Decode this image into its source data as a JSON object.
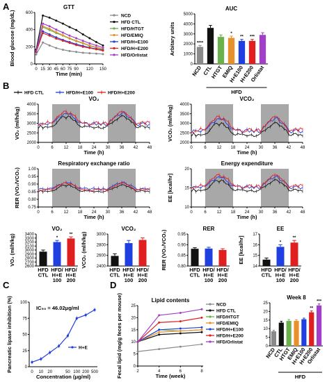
{
  "panels": {
    "A": "A",
    "B": "B",
    "C": "C",
    "D": "D"
  },
  "colors": {
    "NCD": "#8a8a8a",
    "HFD CTL": "#111111",
    "HFD/HTGT": "#6ab04c",
    "HFD/EMIQ": "#e8902c",
    "HFD/H+E100": "#1f3fe0",
    "HFD/H+E200": "#e02020",
    "HFD/Orlistat": "#a23fc8",
    "shade": "#a8a8a8"
  },
  "chart_data": [
    {
      "id": "gtt",
      "type": "line",
      "title": "GTT",
      "xlabel": "Time (min)",
      "ylabel": "Blood glucose (mg/dL)",
      "x": [
        0,
        15,
        30,
        45,
        60,
        75,
        90,
        105,
        120,
        135,
        150
      ],
      "xticks": [
        "0",
        "15",
        "30",
        "45",
        "60",
        "75",
        "90",
        "120",
        "150"
      ],
      "xtick_vals": [
        0,
        15,
        30,
        45,
        60,
        75,
        90,
        120,
        150
      ],
      "ylim": [
        0,
        600
      ],
      "yticks": [
        0,
        200,
        400,
        600
      ],
      "series": [
        {
          "name": "NCD",
          "values": [
            110,
            250,
            215,
            185,
            165,
            150,
            140,
            130,
            125,
            120,
            115
          ]
        },
        {
          "name": "HFD CTL",
          "values": [
            165,
            565,
            540,
            505,
            470,
            430,
            395,
            345,
            300,
            255,
            215
          ]
        },
        {
          "name": "HFD/HTGT",
          "values": [
            150,
            430,
            395,
            360,
            330,
            295,
            265,
            240,
            210,
            190,
            170
          ]
        },
        {
          "name": "HFD/EMIQ",
          "values": [
            150,
            440,
            410,
            370,
            335,
            300,
            270,
            245,
            215,
            195,
            175
          ]
        },
        {
          "name": "HFD/H+E100",
          "values": [
            140,
            380,
            345,
            310,
            280,
            255,
            230,
            210,
            190,
            175,
            160
          ]
        },
        {
          "name": "HFD/H+E200",
          "values": [
            140,
            360,
            330,
            295,
            270,
            245,
            220,
            200,
            185,
            170,
            155
          ]
        },
        {
          "name": "HFD/Orlistat",
          "values": [
            150,
            470,
            440,
            400,
            365,
            330,
            300,
            270,
            240,
            215,
            190
          ]
        }
      ]
    },
    {
      "id": "auc",
      "type": "bar",
      "title": "AUC",
      "ylabel": "Arbitary units",
      "ylim": [
        0,
        5000
      ],
      "yticks": [
        0,
        1000,
        2000,
        3000,
        4000,
        5000
      ],
      "categories": [
        "NCD",
        "CTL",
        "HTGT",
        "EMIQ",
        "H+E100",
        "H+E200",
        "Orlistat"
      ],
      "values": [
        1700,
        3600,
        2700,
        2600,
        2300,
        2300,
        2900
      ],
      "errors": [
        150,
        250,
        200,
        180,
        150,
        150,
        220
      ],
      "stars": [
        "****",
        "",
        "",
        "*",
        "**",
        "***",
        ""
      ],
      "group_label": "HFD",
      "series_colors": [
        "NCD",
        "HFD CTL",
        "HFD/HTGT",
        "HFD/EMIQ",
        "HFD/H+E100",
        "HFD/H+E200",
        "HFD/Orlistat"
      ]
    },
    {
      "id": "vo2",
      "type": "line",
      "title": "VO₂",
      "xlabel": "Time (h)",
      "ylabel": "VO₂ (ml/h/kg)",
      "ylim": [
        2000,
        4000
      ],
      "yticks": [
        2000,
        2500,
        3000,
        3500,
        4000
      ],
      "xlim": [
        0,
        48
      ],
      "xticks": [
        0,
        6,
        12,
        18,
        24,
        30,
        36,
        42,
        48
      ],
      "dark": [
        [
          6,
          18
        ],
        [
          30,
          42
        ]
      ],
      "series": [
        {
          "name": "HFD CTL",
          "base": 2900,
          "amp": 550
        },
        {
          "name": "HFD/H+E100",
          "base": 3050,
          "amp": 600
        },
        {
          "name": "HFD/H+E200",
          "base": 3100,
          "amp": 620
        }
      ]
    },
    {
      "id": "vco2",
      "type": "line",
      "title": "VCO₂",
      "xlabel": "Time (h)",
      "ylabel": "VCO₂ (ml/h/kg)",
      "ylim": [
        2000,
        4000
      ],
      "yticks": [
        2000,
        2500,
        3000,
        3500,
        4000
      ],
      "xlim": [
        0,
        48
      ],
      "xticks": [
        0,
        6,
        12,
        18,
        24,
        30,
        36,
        42,
        48
      ],
      "dark": [
        [
          6,
          18
        ],
        [
          30,
          42
        ]
      ],
      "series": [
        {
          "name": "HFD CTL",
          "base": 2500,
          "amp": 600
        },
        {
          "name": "HFD/H+E100",
          "base": 2700,
          "amp": 700
        },
        {
          "name": "HFD/H+E200",
          "base": 2750,
          "amp": 720
        }
      ]
    },
    {
      "id": "rer",
      "type": "line",
      "title": "Respiratory exchange ratio",
      "xlabel": "Time (h)",
      "ylabel": "RER (VO₂/VCO₂)",
      "ylim": [
        0.75,
        1.0
      ],
      "yticks": [
        0.75,
        0.8,
        0.85,
        0.9,
        0.95,
        1.0
      ],
      "xlim": [
        0,
        48
      ],
      "xticks": [
        0,
        6,
        12,
        18,
        24,
        30,
        36,
        42,
        48
      ],
      "dark": [
        [
          6,
          18
        ],
        [
          30,
          42
        ]
      ],
      "series": [
        {
          "name": "HFD CTL",
          "base": 0.86,
          "amp": 0.04
        },
        {
          "name": "HFD/H+E100",
          "base": 0.875,
          "amp": 0.045
        },
        {
          "name": "HFD/H+E200",
          "base": 0.87,
          "amp": 0.045
        }
      ]
    },
    {
      "id": "ee",
      "type": "line",
      "title": "Energy expenditure",
      "xlabel": "Time (h)",
      "ylabel": "EE [kcal/hr]",
      "ylim": [
        10,
        20
      ],
      "yticks": [
        10,
        15,
        20
      ],
      "xlim": [
        0,
        48
      ],
      "xticks": [
        0,
        6,
        12,
        18,
        24,
        30,
        36,
        42,
        48
      ],
      "dark": [
        [
          6,
          18
        ],
        [
          30,
          42
        ]
      ],
      "series": [
        {
          "name": "HFD CTL",
          "base": 14.8,
          "amp": 2.6
        },
        {
          "name": "HFD/H+E100",
          "base": 15.6,
          "amp": 2.9
        },
        {
          "name": "HFD/H+E200",
          "base": 15.9,
          "amp": 3.0
        }
      ]
    },
    {
      "id": "vo2bar",
      "type": "bar",
      "title": "VO₂",
      "ylabel": "VO₂ (ml/h/kg)",
      "ylim": [
        2600,
        3400
      ],
      "yticks": [
        2600,
        2700,
        2800,
        2900,
        3000,
        3100,
        3200,
        3300,
        3400
      ],
      "categories": [
        "HFD\nCTL",
        "HFD/\nH+E\n100",
        "HFD/\nH+E\n200"
      ],
      "values": [
        2960,
        3200,
        3290
      ],
      "errors": [
        40,
        40,
        40
      ],
      "stars": [
        "",
        "*",
        "**"
      ],
      "series_colors": [
        "HFD CTL",
        "HFD/H+E100",
        "HFD/H+E200"
      ]
    },
    {
      "id": "vco2bar",
      "type": "bar",
      "title": "VCO₂",
      "ylabel": "VCO₂ (ml/h/kg)",
      "ylim": [
        2400,
        3000
      ],
      "yticks": [
        2400,
        2600,
        2800,
        3000
      ],
      "categories": [
        "HFD\nCTL",
        "HFD/\nH+E\n100",
        "HFD/\nH+E\n200"
      ],
      "values": [
        2590,
        2830,
        2890
      ],
      "errors": [
        40,
        50,
        40
      ],
      "stars": [
        "",
        "",
        ""
      ],
      "series_colors": [
        "HFD CTL",
        "HFD/H+E100",
        "HFD/H+E200"
      ]
    },
    {
      "id": "rerbar",
      "type": "bar",
      "title": "RER",
      "ylabel": "RER (VO₂/VCO₂)",
      "ylim": [
        0.8,
        0.95
      ],
      "yticks": [
        0.8,
        0.85,
        0.9,
        0.95
      ],
      "categories": [
        "HFD\nCTL",
        "HFD/\nH+E\n100",
        "HFD/\nH+E\n200"
      ],
      "values": [
        0.881,
        0.882,
        0.875
      ],
      "errors": [
        0.005,
        0.006,
        0.006
      ],
      "stars": [
        "",
        "",
        ""
      ],
      "series_colors": [
        "HFD CTL",
        "HFD/H+E100",
        "HFD/H+E200"
      ]
    },
    {
      "id": "eebar",
      "type": "bar",
      "title": "EE",
      "ylabel": "EE [kcal/hr]",
      "ylim": [
        14,
        17
      ],
      "yticks": [
        14,
        15,
        16,
        17
      ],
      "categories": [
        "HFD\nCTL",
        "HFD/\nH+E\n100",
        "HFD/\nH+E\n200"
      ],
      "values": [
        14.6,
        15.8,
        16.2
      ],
      "errors": [
        0.15,
        0.2,
        0.2
      ],
      "stars": [
        "",
        "*",
        "**"
      ],
      "series_colors": [
        "HFD CTL",
        "HFD/H+E100",
        "HFD/H+E200"
      ]
    },
    {
      "id": "lipase",
      "type": "line",
      "xlabel": "Concentration (μg/ml)",
      "ylabel": "Pancreatic lipase inhibition (%)",
      "ylim": [
        0,
        100
      ],
      "yticks": [
        0,
        25,
        50,
        75,
        100
      ],
      "xticks": [
        "0",
        "10",
        "20",
        "50",
        "100",
        "200",
        "500"
      ],
      "values": [
        7,
        12,
        22,
        32,
        48,
        75,
        80,
        88
      ],
      "annotation": "IC₅₀ = 46.02μg/ml",
      "legend": "H+E"
    },
    {
      "id": "lipid",
      "type": "line",
      "title": "Lipid contents",
      "xlabel": "Time (week)",
      "ylabel": "Fecal lipid (mg/g feces per mouse)",
      "ylim": [
        0,
        25
      ],
      "yticks": [
        0,
        5,
        10,
        15,
        20,
        25
      ],
      "x": [
        2,
        4,
        6,
        8
      ],
      "xticks": [
        2,
        4,
        6,
        8
      ],
      "series": [
        {
          "name": "NCD",
          "values": [
            6,
            7,
            8,
            9
          ]
        },
        {
          "name": "HFD CTL",
          "values": [
            10,
            13,
            13.5,
            14
          ]
        },
        {
          "name": "HFD/HTGT",
          "values": [
            10,
            15,
            14.5,
            15
          ]
        },
        {
          "name": "HFD/EMIQ",
          "values": [
            10,
            14,
            14.5,
            15
          ]
        },
        {
          "name": "HFD/H+E100",
          "values": [
            10,
            15,
            15.5,
            16
          ]
        },
        {
          "name": "HFD/H+E200",
          "values": [
            10,
            18,
            18.5,
            20
          ]
        },
        {
          "name": "HFD/Orlistat",
          "values": [
            10,
            21,
            22,
            23.5
          ]
        }
      ]
    },
    {
      "id": "week8",
      "type": "bar",
      "title": "Week 8",
      "ylim": [
        0,
        25
      ],
      "yticks": [
        0,
        5,
        10,
        15,
        20,
        25
      ],
      "categories": [
        "NCD",
        "CTL",
        "HTGT",
        "EMIQ",
        "H+E100",
        "H+E200",
        "Orlistat"
      ],
      "values": [
        8.5,
        13.5,
        14.5,
        14.5,
        15.5,
        19.5,
        23.5
      ],
      "errors": [
        0.6,
        0.8,
        0.8,
        0.7,
        0.6,
        0.8,
        0.9
      ],
      "stars": [
        "",
        "",
        "",
        "",
        "",
        "**",
        "***"
      ],
      "group_label": "HFD",
      "series_colors": [
        "NCD",
        "HFD CTL",
        "HFD/HTGT",
        "HFD/EMIQ",
        "HFD/H+E100",
        "HFD/H+E200",
        "HFD/Orlistat"
      ]
    }
  ],
  "legends": {
    "A": [
      "NCD",
      "HFD CTL",
      "HFD/HTGT",
      "HFD/EMIQ",
      "HFD/H+E100",
      "HFD/H+E200",
      "HFD/Orlistat"
    ],
    "B": [
      "HFD CTL",
      "HFD/H+E100",
      "HFD/H+E200"
    ],
    "D": [
      "NCD",
      "HFD CTL",
      "HFD/HTGT",
      "HFD/EMIQ",
      "HFD/H+E100",
      "HFD/H+E200",
      "HFD/Orlistat"
    ]
  }
}
